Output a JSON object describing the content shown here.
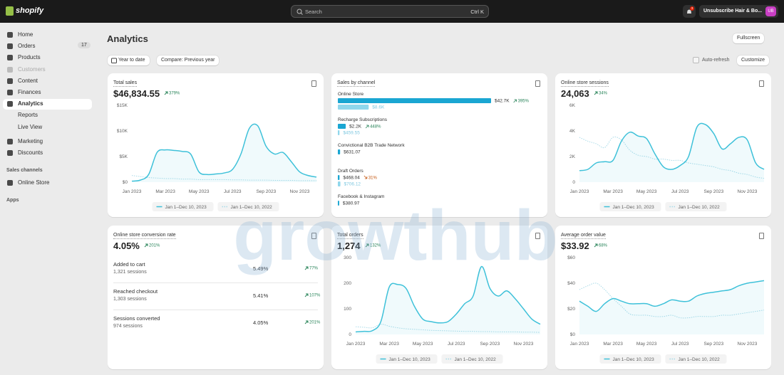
{
  "topbar": {
    "brand": "shopify",
    "search": "Search",
    "shortcut": "Ctrl K",
    "notification_count": "3",
    "store": "Unsubscribe Hair & Bo...",
    "avatar": "UB"
  },
  "sidebar": {
    "items": [
      {
        "label": "Home"
      },
      {
        "label": "Orders",
        "badge": "17"
      },
      {
        "label": "Products"
      },
      {
        "label": "Customers",
        "disabled": true
      },
      {
        "label": "Content"
      },
      {
        "label": "Finances"
      },
      {
        "label": "Analytics",
        "active": true
      },
      {
        "label": "Reports",
        "sub": true
      },
      {
        "label": "Live View",
        "sub": true
      },
      {
        "label": "Marketing"
      },
      {
        "label": "Discounts"
      }
    ],
    "sales_channels": "Sales channels",
    "channel": "Online Store",
    "apps": "Apps"
  },
  "header": {
    "title": "Analytics",
    "fullscreen": "Fullscreen",
    "date_range": "Year to date",
    "compare": "Compare: Previous year",
    "auto_refresh": "Auto-refresh",
    "customize": "Customize"
  },
  "watermark": "growthub",
  "cards": [
    {
      "title": "Total sales",
      "value": "$46,834.55",
      "change": "379%",
      "chart": {
        "type": "line",
        "ylim": [
          0,
          15000
        ],
        "yticks": [
          {
            "value": 0,
            "label": "$0"
          },
          {
            "value": 5000,
            "label": "$5K"
          },
          {
            "value": 10000,
            "label": "$10K"
          },
          {
            "value": 15000,
            "label": "$15K"
          }
        ],
        "xlim": [
          0,
          22
        ],
        "xticks": [
          {
            "value": 0,
            "label": "Jan 2023"
          },
          {
            "value": 4,
            "label": "Mar 2023"
          },
          {
            "value": 8,
            "label": "May 2023"
          },
          {
            "value": 12,
            "label": "Jul 2023"
          },
          {
            "value": 16,
            "label": "Sep 2023"
          },
          {
            "value": 20,
            "label": "Nov 2023"
          }
        ],
        "series": [
          {
            "name": "Jan 1–Dec 10, 2023",
            "color": "#3ec1d9",
            "values": [
              200,
              400,
              1500,
              5800,
              6300,
              6200,
              6000,
              5500,
              2000,
              1500,
              1600,
              1800,
              2500,
              5500,
              10500,
              11000,
              7000,
              5500,
              5800,
              4000,
              2000,
              1300,
              1000
            ]
          },
          {
            "name": "Jan 1–Dec 10, 2022",
            "color": "#a9dbe8",
            "values": [
              1300,
              1100,
              900,
              800,
              700,
              700,
              600,
              600,
              500,
              500,
              500,
              500,
              450,
              450,
              400,
              400,
              400,
              350,
              350,
              350,
              300,
              300,
              300
            ]
          }
        ]
      }
    },
    {
      "title": "Sales by channel",
      "channels": [
        {
          "name": "Online Store",
          "values": [
            42700,
            8600
          ],
          "value_labels": [
            "$42.7K",
            "$8.6K"
          ],
          "change": "395%",
          "trend": "up"
        },
        {
          "name": "Recharge Subscriptions",
          "values": [
            2200,
            459.55
          ],
          "value_labels": [
            "$2.2K",
            "$459.55"
          ],
          "change": "448%",
          "trend": "up"
        },
        {
          "name": "Convictional B2B Trade Network",
          "values": [
            631.07
          ],
          "value_labels": [
            "$631.07"
          ]
        },
        {
          "name": "Draft Orders",
          "values": [
            468.04,
            706.12
          ],
          "value_labels": [
            "$468.04",
            "$706.12"
          ],
          "change": "31%",
          "trend": "down"
        },
        {
          "name": "Facebook & Instagram",
          "values": [
            380.97
          ],
          "value_labels": [
            "$380.97"
          ]
        }
      ]
    },
    {
      "title": "Online store sessions",
      "value": "24,063",
      "change": "34%",
      "chart": {
        "type": "line",
        "ylim": [
          0,
          6000
        ],
        "yticks": [
          0,
          {
            "value": 2000,
            "label": "2K"
          },
          {
            "value": 4000,
            "label": "4K"
          },
          {
            "value": 6000,
            "label": "6K"
          }
        ],
        "xlim": [
          0,
          22
        ],
        "xticks": [
          {
            "value": 0,
            "label": "Jan 2023"
          },
          {
            "value": 4,
            "label": "Mar 2023"
          },
          {
            "value": 8,
            "label": "May 2023"
          },
          {
            "value": 12,
            "label": "Jul 2023"
          },
          {
            "value": 16,
            "label": "Sep 2023"
          },
          {
            "value": 20,
            "label": "Nov 2023"
          }
        ],
        "series": [
          {
            "name": "Jan 1–Dec 10, 2023",
            "color": "#3ec1d9",
            "values": [
              900,
              1000,
              1500,
              1600,
              1700,
              3200,
              3900,
              3600,
              3400,
              2200,
              1200,
              1000,
              1300,
              2000,
              4300,
              4500,
              3800,
              2600,
              3000,
              3500,
              3300,
              1500,
              1000
            ]
          },
          {
            "name": "Jan 1–Dec 10, 2022",
            "color": "#a9dbe8",
            "values": [
              3500,
              3200,
              3000,
              2700,
              3500,
              3300,
              2500,
              2100,
              2000,
              1800,
              1800,
              1700,
              1700,
              1500,
              1400,
              1300,
              1200,
              1000,
              900,
              700,
              600,
              400,
              300
            ]
          }
        ]
      }
    },
    {
      "title": "Online store conversion rate",
      "value": "4.05%",
      "change": "201%",
      "rows": [
        {
          "label": "Added to cart",
          "sessions": "1,321 sessions",
          "rate": "5.49%",
          "change": "77%"
        },
        {
          "label": "Reached checkout",
          "sessions": "1,303 sessions",
          "rate": "5.41%",
          "change": "107%"
        },
        {
          "label": "Sessions converted",
          "sessions": "974 sessions",
          "rate": "4.05%",
          "change": "201%"
        }
      ]
    },
    {
      "title": "Total orders",
      "value": "1,274",
      "change": "132%",
      "chart": {
        "type": "line",
        "ylim": [
          0,
          300
        ],
        "yticks": [
          0,
          100,
          200,
          300
        ],
        "xlim": [
          0,
          22
        ],
        "xticks": [
          {
            "value": 0,
            "label": "Jan 2023"
          },
          {
            "value": 4,
            "label": "Mar 2023"
          },
          {
            "value": 8,
            "label": "May 2023"
          },
          {
            "value": 12,
            "label": "Jul 2023"
          },
          {
            "value": 16,
            "label": "Sep 2023"
          },
          {
            "value": 20,
            "label": "Nov 2023"
          }
        ],
        "series": [
          {
            "name": "Jan 1–Dec 10, 2023",
            "color": "#3ec1d9",
            "values": [
              10,
              12,
              15,
              50,
              185,
              195,
              180,
              110,
              60,
              50,
              45,
              50,
              80,
              120,
              150,
              265,
              180,
              150,
              170,
              140,
              100,
              60,
              40
            ]
          },
          {
            "name": "Jan 1–Dec 10, 2022",
            "color": "#a9dbe8",
            "values": [
              30,
              28,
              26,
              40,
              32,
              26,
              22,
              20,
              18,
              16,
              15,
              14,
              13,
              12,
              12,
              11,
              11,
              10,
              10,
              10,
              9,
              9,
              8
            ]
          }
        ]
      }
    },
    {
      "title": "Average order value",
      "value": "$33.92",
      "change": "68%",
      "chart": {
        "type": "line",
        "ylim": [
          0,
          60
        ],
        "yticks": [
          {
            "value": 0,
            "label": "$0"
          },
          {
            "value": 20,
            "label": "$20"
          },
          {
            "value": 40,
            "label": "$40"
          },
          {
            "value": 60,
            "label": "$60"
          }
        ],
        "xlim": [
          0,
          22
        ],
        "xticks": [
          {
            "value": 0,
            "label": "Jan 2023"
          },
          {
            "value": 4,
            "label": "Mar 2023"
          },
          {
            "value": 8,
            "label": "May 2023"
          },
          {
            "value": 12,
            "label": "Jul 2023"
          },
          {
            "value": 16,
            "label": "Sep 2023"
          },
          {
            "value": 20,
            "label": "Nov 2023"
          }
        ],
        "series": [
          {
            "name": "Jan 1–Dec 10, 2023",
            "color": "#3ec1d9",
            "values": [
              26,
              22,
              18,
              24,
              28,
              26,
              24,
              24,
              24,
              22,
              24,
              27,
              26,
              26,
              30,
              32,
              33,
              34,
              35,
              38,
              40,
              41,
              42
            ]
          },
          {
            "name": "Jan 1–Dec 10, 2022",
            "color": "#a9dbe8",
            "values": [
              35,
              38,
              40,
              35,
              28,
              22,
              16,
              15,
              15,
              14,
              14,
              15,
              13,
              13,
              14,
              14,
              14,
              15,
              15,
              16,
              17,
              18,
              19
            ]
          }
        ]
      }
    }
  ]
}
